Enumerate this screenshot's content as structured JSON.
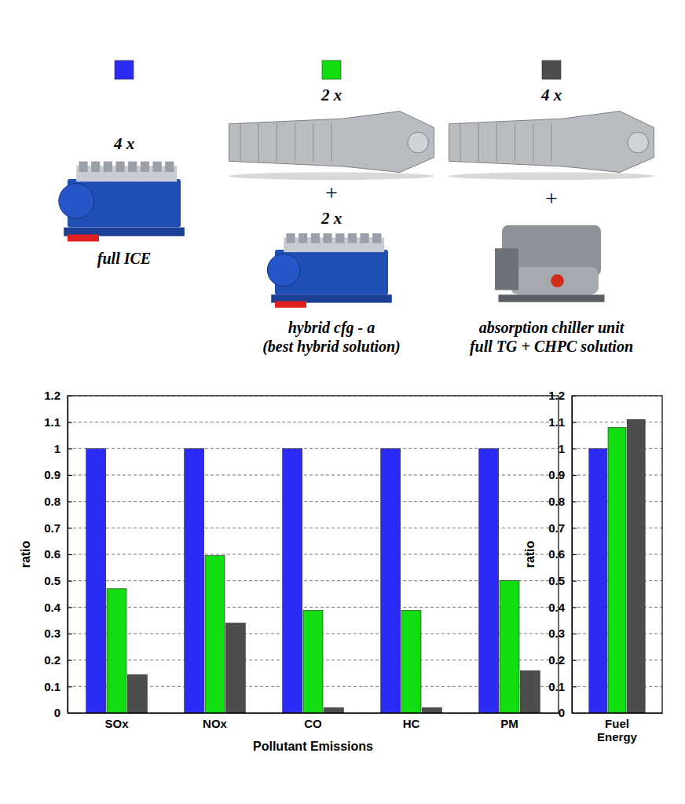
{
  "legend": {
    "joiner": "+",
    "items": [
      {
        "color": "#2b2bf5",
        "counts": [
          "4 x"
        ],
        "caption": [
          "full ICE"
        ]
      },
      {
        "color": "#11dd11",
        "counts": [
          "2 x",
          "2 x"
        ],
        "caption": [
          "hybrid cfg - a",
          "(best hybrid solution)"
        ]
      },
      {
        "color": "#4d4d4d",
        "counts": [
          "4 x",
          null
        ],
        "caption": [
          "absorption chiller unit",
          "full TG + CHPC solution"
        ]
      }
    ]
  },
  "chart_data": [
    {
      "type": "bar",
      "x_label": "Pollutant Emissions",
      "y_label": "ratio",
      "categories": [
        "SOx",
        "NOx",
        "CO",
        "HC",
        "PM"
      ],
      "series": [
        {
          "color": "#2b2bf5",
          "values": [
            1,
            1,
            1,
            1,
            1
          ]
        },
        {
          "color": "#11dd11",
          "values": [
            0.47,
            0.595,
            0.388,
            0.388,
            0.5
          ]
        },
        {
          "color": "#4d4d4d",
          "values": [
            0.145,
            0.34,
            0.02,
            0.02,
            0.16
          ]
        }
      ],
      "ylim": [
        0,
        1.2
      ],
      "yticks": [
        0,
        0.1,
        0.2,
        0.3,
        0.4,
        0.5,
        0.6,
        0.7,
        0.8,
        0.9,
        1,
        1.1,
        1.2
      ],
      "grid": true
    },
    {
      "type": "bar",
      "y_label": "ratio",
      "categories": [
        "Fuel Energy"
      ],
      "series": [
        {
          "color": "#2b2bf5",
          "values": [
            1
          ]
        },
        {
          "color": "#11dd11",
          "values": [
            1.08
          ]
        },
        {
          "color": "#4d4d4d",
          "values": [
            1.11
          ]
        }
      ],
      "ylim": [
        0,
        1.2
      ],
      "yticks": [
        0,
        0.1,
        0.2,
        0.3,
        0.4,
        0.5,
        0.6,
        0.7,
        0.8,
        0.9,
        1,
        1.1,
        1.2
      ],
      "grid": true
    }
  ]
}
